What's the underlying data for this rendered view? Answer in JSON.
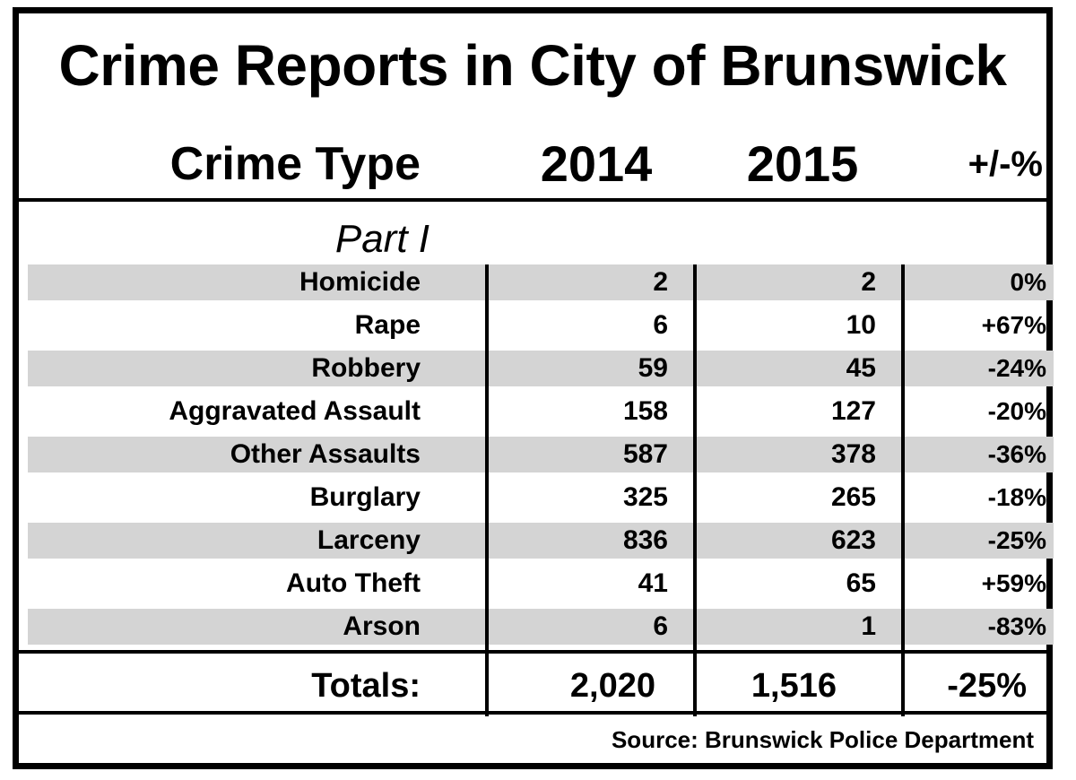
{
  "chart_data": {
    "type": "table",
    "title": "Crime Reports in City of Brunswick",
    "columns": [
      "Crime Type",
      "2014",
      "2015",
      "+/-%"
    ],
    "section": "Part I",
    "rows": [
      {
        "crime": "Homicide",
        "y2014": "2",
        "y2015": "2",
        "change": "0%"
      },
      {
        "crime": "Rape",
        "y2014": "6",
        "y2015": "10",
        "change": "+67%"
      },
      {
        "crime": "Robbery",
        "y2014": "59",
        "y2015": "45",
        "change": "-24%"
      },
      {
        "crime": "Aggravated Assault",
        "y2014": "158",
        "y2015": "127",
        "change": "-20%"
      },
      {
        "crime": "Other Assaults",
        "y2014": "587",
        "y2015": "378",
        "change": "-36%"
      },
      {
        "crime": "Burglary",
        "y2014": "325",
        "y2015": "265",
        "change": "-18%"
      },
      {
        "crime": "Larceny",
        "y2014": "836",
        "y2015": "623",
        "change": "-25%"
      },
      {
        "crime": "Auto Theft",
        "y2014": "41",
        "y2015": "65",
        "change": "+59%"
      },
      {
        "crime": "Arson",
        "y2014": "6",
        "y2015": "1",
        "change": "-83%"
      }
    ],
    "totals": {
      "label": "Totals:",
      "y2014": "2,020",
      "y2015": "1,516",
      "change": "-25%"
    },
    "source": "Source:  Brunswick Police Department"
  },
  "colors": {
    "shade": "#d4d4d4",
    "rule": "#000000"
  }
}
